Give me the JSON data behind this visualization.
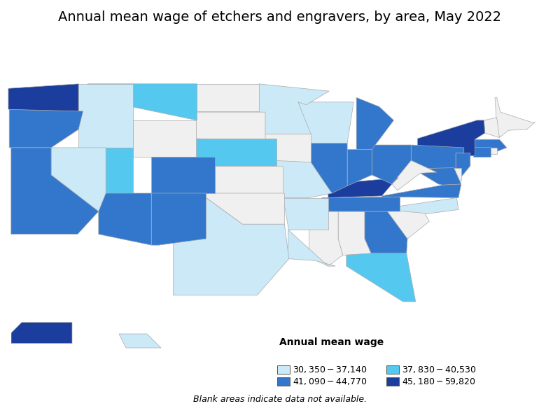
{
  "title": "Annual mean wage of etchers and engravers, by area, May 2022",
  "legend_title": "Annual mean wage",
  "legend_items": [
    {
      "label": "$30,350 - $37,140",
      "color": "#cce9f7"
    },
    {
      "label": "$37,830 - $40,530",
      "color": "#55c8f0"
    },
    {
      "label": "$41,090 - $44,770",
      "color": "#3377cc"
    },
    {
      "label": "$45,180 - $59,820",
      "color": "#1a3d9e"
    }
  ],
  "blank_note": "Blank areas indicate data not available.",
  "background_color": "#ffffff",
  "border_color": "#aaaaaa",
  "default_fill": "#f0f0f0",
  "title_fontsize": 14,
  "legend_fontsize": 9,
  "state_colors": {
    "Washington": "#1a3d9e",
    "Oregon": "#3377cc",
    "California": "#3377cc",
    "Arizona": "#3377cc",
    "Montana": "#55c8f0",
    "Idaho": "#cce9f7",
    "Nevada": "#cce9f7",
    "Utah": "#55c8f0",
    "Colorado": "#3377cc",
    "New Mexico": "#3377cc",
    "Nebraska": "#55c8f0",
    "Texas": "#cce9f7",
    "Minnesota": "#cce9f7",
    "Missouri": "#cce9f7",
    "Arkansas": "#cce9f7",
    "Louisiana": "#cce9f7",
    "Wisconsin": "#cce9f7",
    "Illinois": "#3377cc",
    "Michigan": "#3377cc",
    "Indiana": "#3377cc",
    "Ohio": "#3377cc",
    "Kentucky": "#1a3d9e",
    "Tennessee": "#3377cc",
    "Georgia": "#3377cc",
    "Florida": "#55c8f0",
    "North Carolina": "#cce9f7",
    "Virginia": "#3377cc",
    "Pennsylvania": "#3377cc",
    "New York": "#1a3d9e",
    "Vermont": "#1a3d9e",
    "Massachusetts": "#3377cc",
    "Connecticut": "#3377cc",
    "New Jersey": "#3377cc",
    "Maryland": "#3377cc",
    "Alaska": "#1a3d9e",
    "Hawaii": "#cce9f7"
  }
}
